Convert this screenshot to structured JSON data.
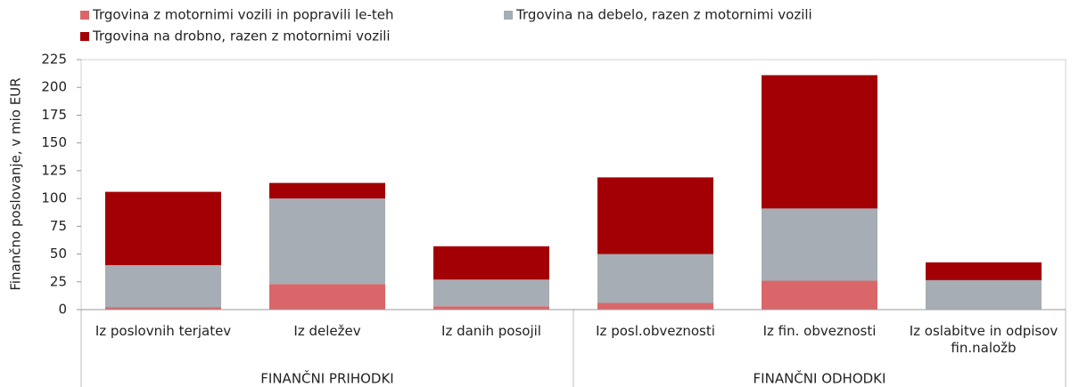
{
  "chart_data": {
    "type": "stacked-bar",
    "y_label": "Finančno poslovanje, v mio EUR",
    "groups": [
      {
        "name": "FINANČNI PRIHODKI",
        "categories": [
          "Iz poslovnih terjatev",
          "Iz deležev",
          "Iz danih posojil"
        ]
      },
      {
        "name": "FINANČNI ODHODKI",
        "categories": [
          "Iz posl.obveznosti",
          "Iz fin. obveznosti",
          "Iz oslabitve in odpisov fin.naložb"
        ]
      }
    ],
    "series": [
      {
        "name": "Trgovina z motornimi vozili in popravili le-teh",
        "color": "#d9676a",
        "values": [
          2,
          23,
          3,
          6,
          26,
          0.5
        ]
      },
      {
        "name": "Trgovina na debelo, razen z motornimi vozili",
        "color": "#a6adb4",
        "values": [
          38,
          77,
          24,
          44,
          65,
          26
        ]
      },
      {
        "name": "Trgovina na drobno, razen z motornimi vozili",
        "color": "#a30005",
        "values": [
          66,
          14,
          30,
          69,
          120,
          16
        ]
      }
    ],
    "ylim": [
      0,
      225
    ],
    "yticks": [
      0,
      25,
      50,
      75,
      100,
      125,
      150,
      175,
      200,
      225
    ]
  }
}
